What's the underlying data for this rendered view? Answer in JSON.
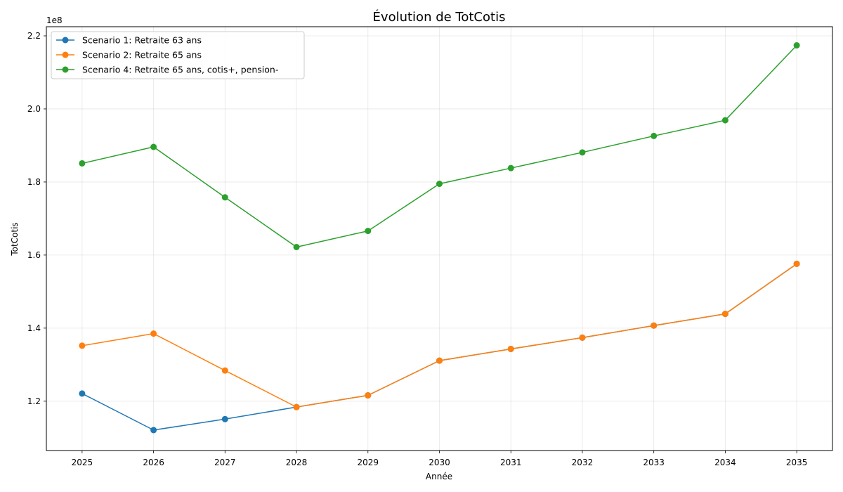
{
  "chart_data": {
    "type": "line",
    "title": "Évolution de TotCotis",
    "xlabel": "Année",
    "ylabel": "TotCotis",
    "y_offset_label": "1e8",
    "y_scale": 100000000,
    "x": [
      2025,
      2026,
      2027,
      2028,
      2029,
      2030,
      2031,
      2032,
      2033,
      2034,
      2035
    ],
    "x_tick_labels": [
      "2025",
      "2026",
      "2027",
      "2028",
      "2029",
      "2030",
      "2031",
      "2032",
      "2033",
      "2034",
      "2035"
    ],
    "xlim": [
      2024.5,
      2035.5
    ],
    "ylim": [
      1.065,
      2.225
    ],
    "y_ticks": [
      1.2,
      1.4,
      1.6,
      1.8,
      2.0,
      2.2
    ],
    "y_tick_labels": [
      "1.2",
      "1.4",
      "1.6",
      "1.8",
      "2.0",
      "2.2"
    ],
    "grid": true,
    "legend_position": "upper-left",
    "series": [
      {
        "name": "Scenario 1: Retraite 63 ans",
        "color": "#1f77b4",
        "marker": "circle",
        "values": [
          1.221,
          1.121,
          1.151,
          1.184,
          1.216,
          1.311,
          1.343,
          1.374,
          1.407,
          1.439,
          1.576
        ]
      },
      {
        "name": "Scenario 2: Retraite 65 ans",
        "color": "#ff7f0e",
        "marker": "circle",
        "values": [
          1.352,
          1.385,
          1.284,
          1.184,
          1.216,
          1.311,
          1.343,
          1.374,
          1.407,
          1.439,
          1.576
        ]
      },
      {
        "name": "Scenario 4: Retraite 65 ans, cotis+, pension-",
        "color": "#2ca02c",
        "marker": "circle",
        "values": [
          1.851,
          1.896,
          1.758,
          1.622,
          1.666,
          1.795,
          1.838,
          1.881,
          1.926,
          1.969,
          2.174
        ]
      }
    ]
  }
}
